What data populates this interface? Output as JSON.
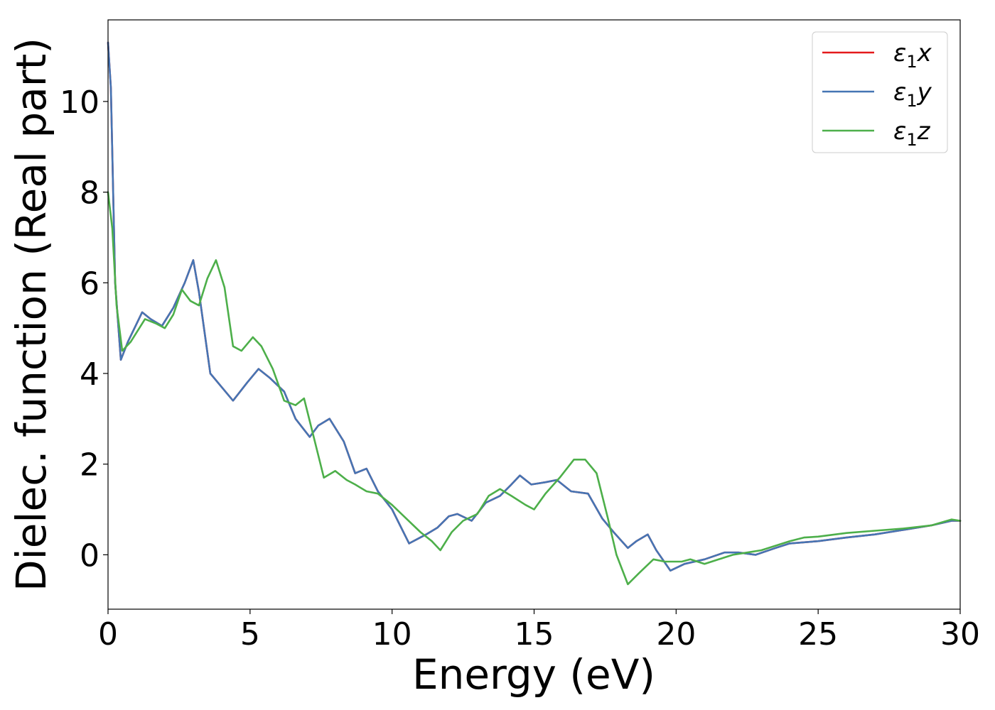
{
  "chart_data": {
    "type": "line",
    "title": "",
    "xlabel": "Energy (eV)",
    "ylabel": "Dielec. function (Real part)",
    "xlim": [
      0,
      30
    ],
    "ylim": [
      -1.2,
      11.8
    ],
    "xticks": [
      0,
      5,
      10,
      15,
      20,
      25,
      30
    ],
    "yticks": [
      0,
      2,
      4,
      6,
      8,
      10
    ],
    "grid": false,
    "legend_position": "top-right",
    "series": [
      {
        "name": "ε1x",
        "legend": {
          "base": "ε",
          "sub": "1",
          "axis": "x"
        },
        "color": "#e41a1c",
        "points": [
          [
            0,
            11.3
          ],
          [
            0.1,
            10.3
          ],
          [
            0.25,
            6.0
          ],
          [
            0.45,
            4.3
          ],
          [
            0.7,
            4.7
          ],
          [
            1.2,
            5.35
          ],
          [
            1.5,
            5.2
          ],
          [
            1.9,
            5.05
          ],
          [
            2.3,
            5.45
          ],
          [
            2.7,
            6.0
          ],
          [
            3.0,
            6.5
          ],
          [
            3.2,
            5.8
          ],
          [
            3.6,
            4.0
          ],
          [
            4.0,
            3.7
          ],
          [
            4.4,
            3.4
          ],
          [
            4.9,
            3.8
          ],
          [
            5.3,
            4.1
          ],
          [
            5.7,
            3.9
          ],
          [
            6.2,
            3.6
          ],
          [
            6.6,
            3.0
          ],
          [
            7.1,
            2.6
          ],
          [
            7.4,
            2.85
          ],
          [
            7.8,
            3.0
          ],
          [
            8.3,
            2.5
          ],
          [
            8.7,
            1.8
          ],
          [
            9.1,
            1.9
          ],
          [
            9.5,
            1.4
          ],
          [
            10.0,
            1.0
          ],
          [
            10.6,
            0.25
          ],
          [
            11.2,
            0.45
          ],
          [
            11.6,
            0.6
          ],
          [
            12.0,
            0.85
          ],
          [
            12.3,
            0.9
          ],
          [
            12.8,
            0.75
          ],
          [
            13.3,
            1.15
          ],
          [
            13.8,
            1.3
          ],
          [
            14.2,
            1.55
          ],
          [
            14.5,
            1.75
          ],
          [
            14.9,
            1.55
          ],
          [
            15.4,
            1.6
          ],
          [
            15.8,
            1.65
          ],
          [
            16.3,
            1.4
          ],
          [
            16.9,
            1.35
          ],
          [
            17.4,
            0.8
          ],
          [
            17.8,
            0.5
          ],
          [
            18.3,
            0.15
          ],
          [
            18.6,
            0.3
          ],
          [
            19.0,
            0.45
          ],
          [
            19.3,
            0.1
          ],
          [
            19.8,
            -0.35
          ],
          [
            20.3,
            -0.2
          ],
          [
            21.0,
            -0.1
          ],
          [
            21.7,
            0.05
          ],
          [
            22.2,
            0.05
          ],
          [
            22.8,
            0.0
          ],
          [
            23.5,
            0.15
          ],
          [
            24.0,
            0.25
          ],
          [
            25.0,
            0.3
          ],
          [
            26.0,
            0.38
          ],
          [
            27.0,
            0.45
          ],
          [
            28.0,
            0.55
          ],
          [
            29.0,
            0.65
          ],
          [
            29.7,
            0.75
          ],
          [
            30.0,
            0.75
          ]
        ]
      },
      {
        "name": "ε1y",
        "legend": {
          "base": "ε",
          "sub": "1",
          "axis": "y"
        },
        "color": "#4575b4",
        "points": [
          [
            0,
            11.3
          ],
          [
            0.1,
            10.3
          ],
          [
            0.25,
            6.0
          ],
          [
            0.45,
            4.3
          ],
          [
            0.7,
            4.7
          ],
          [
            1.2,
            5.35
          ],
          [
            1.5,
            5.2
          ],
          [
            1.9,
            5.05
          ],
          [
            2.3,
            5.45
          ],
          [
            2.7,
            6.0
          ],
          [
            3.0,
            6.5
          ],
          [
            3.2,
            5.8
          ],
          [
            3.6,
            4.0
          ],
          [
            4.0,
            3.7
          ],
          [
            4.4,
            3.4
          ],
          [
            4.9,
            3.8
          ],
          [
            5.3,
            4.1
          ],
          [
            5.7,
            3.9
          ],
          [
            6.2,
            3.6
          ],
          [
            6.6,
            3.0
          ],
          [
            7.1,
            2.6
          ],
          [
            7.4,
            2.85
          ],
          [
            7.8,
            3.0
          ],
          [
            8.3,
            2.5
          ],
          [
            8.7,
            1.8
          ],
          [
            9.1,
            1.9
          ],
          [
            9.5,
            1.4
          ],
          [
            10.0,
            1.0
          ],
          [
            10.6,
            0.25
          ],
          [
            11.2,
            0.45
          ],
          [
            11.6,
            0.6
          ],
          [
            12.0,
            0.85
          ],
          [
            12.3,
            0.9
          ],
          [
            12.8,
            0.75
          ],
          [
            13.3,
            1.15
          ],
          [
            13.8,
            1.3
          ],
          [
            14.2,
            1.55
          ],
          [
            14.5,
            1.75
          ],
          [
            14.9,
            1.55
          ],
          [
            15.4,
            1.6
          ],
          [
            15.8,
            1.65
          ],
          [
            16.3,
            1.4
          ],
          [
            16.9,
            1.35
          ],
          [
            17.4,
            0.8
          ],
          [
            17.8,
            0.5
          ],
          [
            18.3,
            0.15
          ],
          [
            18.6,
            0.3
          ],
          [
            19.0,
            0.45
          ],
          [
            19.3,
            0.1
          ],
          [
            19.8,
            -0.35
          ],
          [
            20.3,
            -0.2
          ],
          [
            21.0,
            -0.1
          ],
          [
            21.7,
            0.05
          ],
          [
            22.2,
            0.05
          ],
          [
            22.8,
            0.0
          ],
          [
            23.5,
            0.15
          ],
          [
            24.0,
            0.25
          ],
          [
            25.0,
            0.3
          ],
          [
            26.0,
            0.38
          ],
          [
            27.0,
            0.45
          ],
          [
            28.0,
            0.55
          ],
          [
            29.0,
            0.65
          ],
          [
            29.7,
            0.75
          ],
          [
            30.0,
            0.75
          ]
        ]
      },
      {
        "name": "ε1z",
        "legend": {
          "base": "ε",
          "sub": "1",
          "axis": "z"
        },
        "color": "#4daf4a",
        "points": [
          [
            0,
            8.0
          ],
          [
            0.15,
            7.2
          ],
          [
            0.3,
            5.5
          ],
          [
            0.5,
            4.5
          ],
          [
            0.8,
            4.7
          ],
          [
            1.3,
            5.2
          ],
          [
            1.7,
            5.1
          ],
          [
            2.0,
            5.0
          ],
          [
            2.3,
            5.3
          ],
          [
            2.6,
            5.85
          ],
          [
            2.9,
            5.6
          ],
          [
            3.2,
            5.5
          ],
          [
            3.5,
            6.1
          ],
          [
            3.8,
            6.5
          ],
          [
            4.1,
            5.9
          ],
          [
            4.4,
            4.6
          ],
          [
            4.7,
            4.5
          ],
          [
            5.1,
            4.8
          ],
          [
            5.4,
            4.6
          ],
          [
            5.8,
            4.1
          ],
          [
            6.2,
            3.4
          ],
          [
            6.6,
            3.3
          ],
          [
            6.9,
            3.45
          ],
          [
            7.2,
            2.7
          ],
          [
            7.6,
            1.7
          ],
          [
            8.0,
            1.85
          ],
          [
            8.4,
            1.65
          ],
          [
            8.7,
            1.55
          ],
          [
            9.1,
            1.4
          ],
          [
            9.5,
            1.35
          ],
          [
            10.0,
            1.1
          ],
          [
            10.5,
            0.8
          ],
          [
            11.0,
            0.5
          ],
          [
            11.4,
            0.3
          ],
          [
            11.7,
            0.1
          ],
          [
            12.1,
            0.5
          ],
          [
            12.5,
            0.75
          ],
          [
            13.0,
            0.9
          ],
          [
            13.4,
            1.3
          ],
          [
            13.8,
            1.45
          ],
          [
            14.2,
            1.3
          ],
          [
            14.7,
            1.1
          ],
          [
            15.0,
            1.0
          ],
          [
            15.4,
            1.35
          ],
          [
            15.9,
            1.7
          ],
          [
            16.4,
            2.1
          ],
          [
            16.8,
            2.1
          ],
          [
            17.2,
            1.8
          ],
          [
            17.6,
            0.8
          ],
          [
            17.9,
            0.0
          ],
          [
            18.3,
            -0.65
          ],
          [
            18.7,
            -0.4
          ],
          [
            19.2,
            -0.1
          ],
          [
            19.6,
            -0.15
          ],
          [
            20.2,
            -0.15
          ],
          [
            20.5,
            -0.1
          ],
          [
            21.0,
            -0.2
          ],
          [
            21.5,
            -0.1
          ],
          [
            22.0,
            0.0
          ],
          [
            22.5,
            0.05
          ],
          [
            23.0,
            0.1
          ],
          [
            23.5,
            0.2
          ],
          [
            24.0,
            0.3
          ],
          [
            24.5,
            0.38
          ],
          [
            25.0,
            0.4
          ],
          [
            26.0,
            0.48
          ],
          [
            27.0,
            0.53
          ],
          [
            28.0,
            0.58
          ],
          [
            29.0,
            0.65
          ],
          [
            29.7,
            0.78
          ],
          [
            30.0,
            0.75
          ]
        ]
      }
    ]
  }
}
